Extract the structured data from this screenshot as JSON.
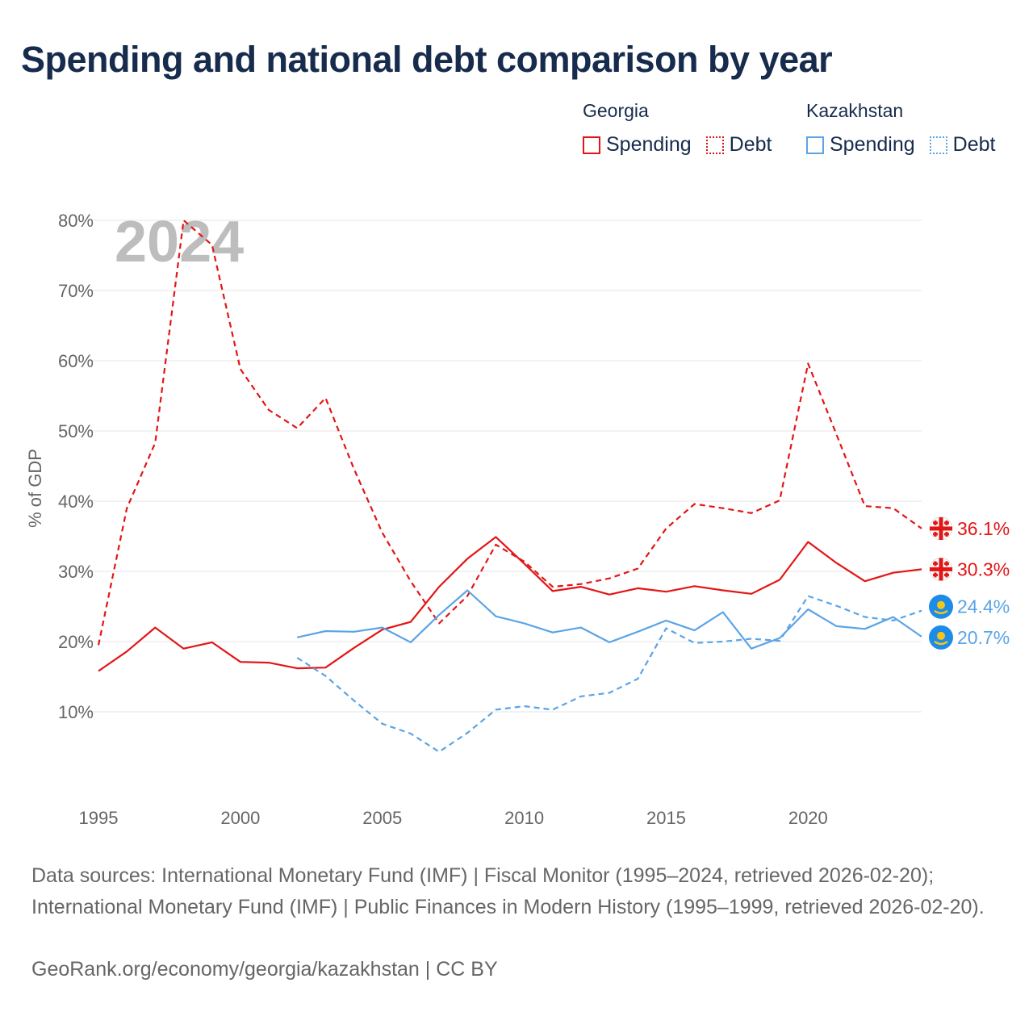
{
  "title": "Spending and national debt comparison by year",
  "legend": {
    "georgia": {
      "name": "Georgia",
      "spending": "Spending",
      "debt": "Debt"
    },
    "kazakhstan": {
      "name": "Kazakhstan",
      "spending": "Spending",
      "debt": "Debt"
    }
  },
  "colors": {
    "georgia": "#e31515",
    "kazakhstan": "#5ba4e6",
    "grid": "#e6e6e6",
    "axis_text": "#666666",
    "watermark": "#bdbdbd"
  },
  "chart_data": {
    "type": "line",
    "ylabel": "% of GDP",
    "ylim": [
      0,
      82
    ],
    "xlim": [
      1995,
      2024
    ],
    "yticks": [
      10,
      20,
      30,
      40,
      50,
      60,
      70,
      80
    ],
    "ytick_labels": [
      "10%",
      "20%",
      "30%",
      "40%",
      "50%",
      "60%",
      "70%",
      "80%"
    ],
    "xticks": [
      1995,
      2000,
      2005,
      2010,
      2015,
      2020
    ],
    "xtick_labels": [
      "1995",
      "2000",
      "2005",
      "2010",
      "2015",
      "2020"
    ],
    "year_watermark": "2024",
    "series": [
      {
        "name": "Georgia Debt",
        "country": "georgia",
        "style": "dashed",
        "x": [
          1995,
          1996,
          1997,
          1998,
          1999,
          2000,
          2001,
          2002,
          2003,
          2004,
          2005,
          2006,
          2007,
          2008,
          2009,
          2010,
          2011,
          2012,
          2013,
          2014,
          2015,
          2016,
          2017,
          2018,
          2019,
          2020,
          2021,
          2022,
          2023,
          2024
        ],
        "values": [
          19.5,
          39,
          48.3,
          80,
          76.5,
          58.8,
          53,
          50.4,
          54.7,
          44.6,
          35.5,
          28.6,
          22.6,
          26.5,
          33.8,
          31.4,
          27.8,
          28.2,
          29,
          30.4,
          36.1,
          39.6,
          39,
          38.3,
          40.1,
          59.6,
          49.5,
          39.3,
          39,
          36.1
        ],
        "end_label": "36.1%"
      },
      {
        "name": "Georgia Spending",
        "country": "georgia",
        "style": "solid",
        "x": [
          1995,
          1996,
          1997,
          1998,
          1999,
          2000,
          2001,
          2002,
          2003,
          2004,
          2005,
          2006,
          2007,
          2008,
          2009,
          2010,
          2011,
          2012,
          2013,
          2014,
          2015,
          2016,
          2017,
          2018,
          2019,
          2020,
          2021,
          2022,
          2023,
          2024
        ],
        "values": [
          15.8,
          18.6,
          22,
          19,
          19.9,
          17.1,
          17,
          16.2,
          16.3,
          19.1,
          21.7,
          22.8,
          27.8,
          31.8,
          34.9,
          31.1,
          27.2,
          27.8,
          26.7,
          27.6,
          27.1,
          27.9,
          27.3,
          26.8,
          28.8,
          34.2,
          31.2,
          28.6,
          29.8,
          30.3
        ],
        "end_label": "30.3%"
      },
      {
        "name": "Kazakhstan Spending",
        "country": "kazakhstan",
        "style": "solid",
        "x": [
          2002,
          2003,
          2004,
          2005,
          2006,
          2007,
          2008,
          2009,
          2010,
          2011,
          2012,
          2013,
          2014,
          2015,
          2016,
          2017,
          2018,
          2019,
          2020,
          2021,
          2022,
          2023,
          2024
        ],
        "values": [
          20.6,
          21.5,
          21.4,
          22,
          19.9,
          23.8,
          27.3,
          23.6,
          22.6,
          21.3,
          22,
          19.9,
          21.4,
          23,
          21.6,
          24.2,
          19,
          20.5,
          24.6,
          22.2,
          21.8,
          23.5,
          20.7
        ],
        "end_label": "20.7%"
      },
      {
        "name": "Kazakhstan Debt",
        "country": "kazakhstan",
        "style": "dashed",
        "x": [
          2002,
          2003,
          2004,
          2005,
          2006,
          2007,
          2008,
          2009,
          2010,
          2011,
          2012,
          2013,
          2014,
          2015,
          2016,
          2017,
          2018,
          2019,
          2020,
          2021,
          2022,
          2023,
          2024
        ],
        "values": [
          17.7,
          15.1,
          11.6,
          8.3,
          6.9,
          4.3,
          7,
          10.3,
          10.8,
          10.3,
          12.2,
          12.7,
          14.7,
          21.9,
          19.8,
          20,
          20.4,
          20.1,
          26.5,
          25.1,
          23.5,
          23,
          24.4
        ],
        "end_label": "24.4%"
      }
    ]
  },
  "footer": {
    "sources": "Data sources: International Monetary Fund (IMF) | Fiscal Monitor (1995–2024, retrieved 2026-02-20); International Monetary Fund (IMF) | Public Finances in Modern History (1995–1999, retrieved 2026-02-20).",
    "credit": "GeoRank.org/economy/georgia/kazakhstan | CC BY"
  }
}
